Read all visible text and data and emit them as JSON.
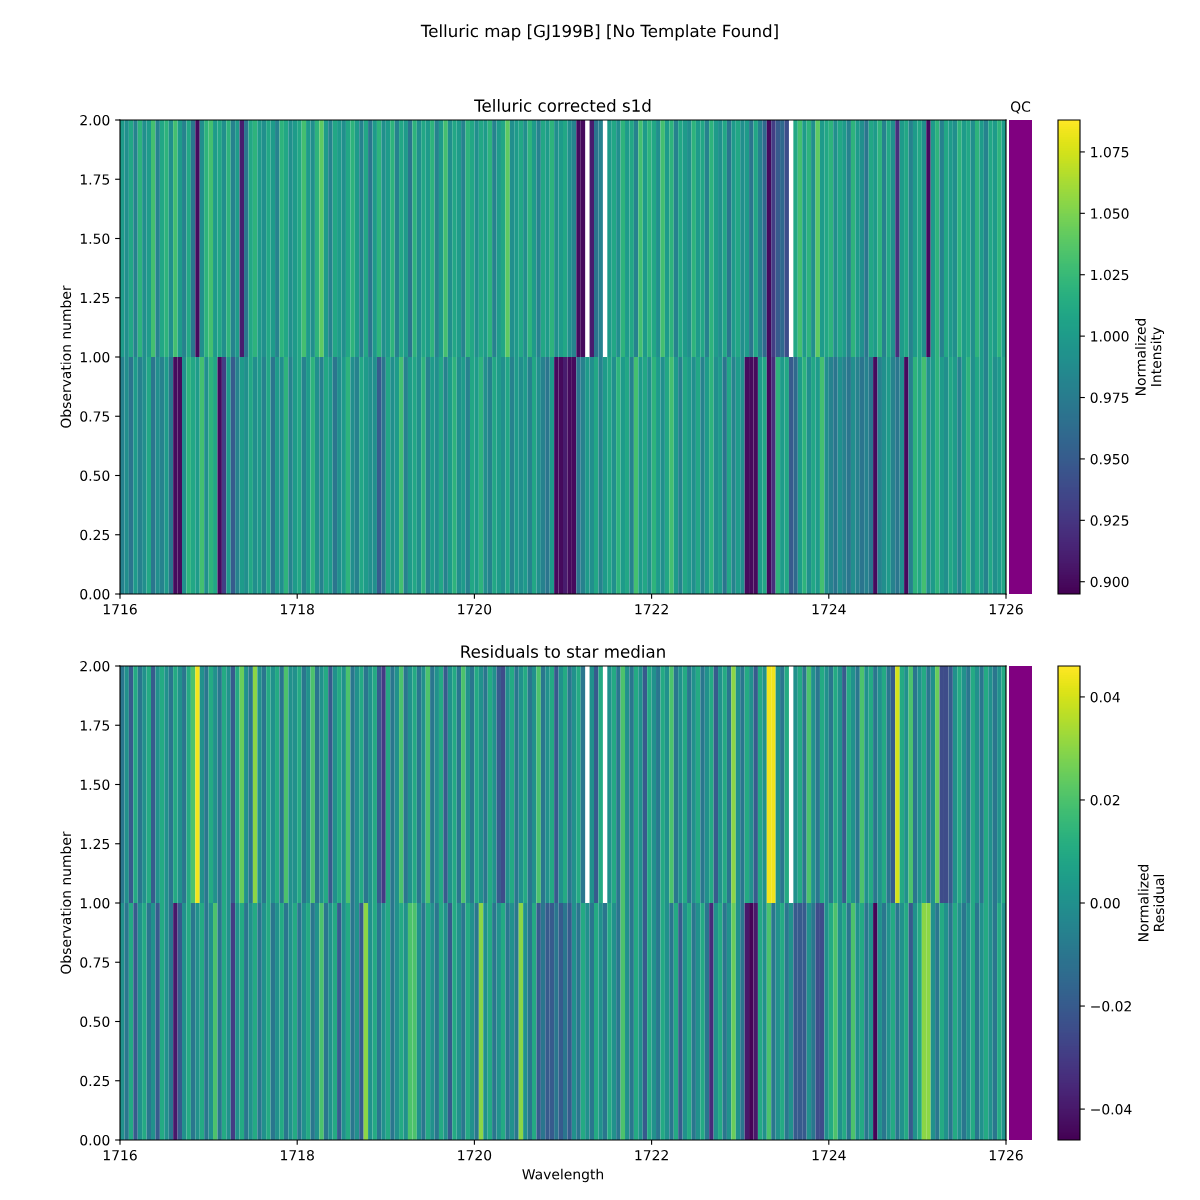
{
  "chart_data": [
    {
      "type": "heatmap",
      "title": "Telluric corrected s1d",
      "annotations": [
        "Telluric map [GJ199B] [No Template Found]"
      ],
      "ylabel": "Observation number",
      "clabel": "Normalized\nIntensity",
      "x": [
        1716.025,
        1716.075,
        1716.125,
        1716.175,
        1716.225,
        1716.275,
        1716.325,
        1716.375,
        1716.425,
        1716.475,
        1716.525,
        1716.575,
        1716.625,
        1716.675,
        1716.725,
        1716.775,
        1716.825,
        1716.875,
        1716.925,
        1716.975,
        1717.025,
        1717.075,
        1717.125,
        1717.175,
        1717.225,
        1717.275,
        1717.325,
        1717.375,
        1717.425,
        1717.475,
        1717.525,
        1717.575,
        1717.625,
        1717.675,
        1717.725,
        1717.775,
        1717.825,
        1717.875,
        1717.925,
        1717.975,
        1718.025,
        1718.075,
        1718.125,
        1718.175,
        1718.225,
        1718.275,
        1718.325,
        1718.375,
        1718.425,
        1718.475,
        1718.525,
        1718.575,
        1718.625,
        1718.675,
        1718.725,
        1718.775,
        1718.825,
        1718.875,
        1718.925,
        1718.975,
        1719.025,
        1719.075,
        1719.125,
        1719.175,
        1719.225,
        1719.275,
        1719.325,
        1719.375,
        1719.425,
        1719.475,
        1719.525,
        1719.575,
        1719.625,
        1719.675,
        1719.725,
        1719.775,
        1719.825,
        1719.875,
        1719.925,
        1719.975,
        1720.025,
        1720.075,
        1720.125,
        1720.175,
        1720.225,
        1720.275,
        1720.325,
        1720.375,
        1720.425,
        1720.475,
        1720.525,
        1720.575,
        1720.625,
        1720.675,
        1720.725,
        1720.775,
        1720.825,
        1720.875,
        1720.925,
        1720.975,
        1721.025,
        1721.075,
        1721.125,
        1721.175,
        1721.225,
        1721.275,
        1721.325,
        1721.375,
        1721.425,
        1721.475,
        1721.525,
        1721.575,
        1721.625,
        1721.675,
        1721.725,
        1721.775,
        1721.825,
        1721.875,
        1721.925,
        1721.975,
        1722.025,
        1722.075,
        1722.125,
        1722.175,
        1722.225,
        1722.275,
        1722.325,
        1722.375,
        1722.425,
        1722.475,
        1722.525,
        1722.575,
        1722.625,
        1722.675,
        1722.725,
        1722.775,
        1722.825,
        1722.875,
        1722.925,
        1722.975,
        1723.025,
        1723.075,
        1723.125,
        1723.175,
        1723.225,
        1723.275,
        1723.325,
        1723.375,
        1723.425,
        1723.475,
        1723.525,
        1723.575,
        1723.625,
        1723.675,
        1723.725,
        1723.775,
        1723.825,
        1723.875,
        1723.925,
        1723.975,
        1724.025,
        1724.075,
        1724.125,
        1724.175,
        1724.225,
        1724.275,
        1724.325,
        1724.375,
        1724.425,
        1724.475,
        1724.525,
        1724.575,
        1724.625,
        1724.675,
        1724.725,
        1724.775,
        1724.825,
        1724.875,
        1724.925,
        1724.975,
        1725.025,
        1725.075,
        1725.125,
        1725.175,
        1725.225,
        1725.275,
        1725.325,
        1725.375,
        1725.425,
        1725.475,
        1725.525,
        1725.575,
        1725.625,
        1725.675,
        1725.725,
        1725.775,
        1725.825,
        1725.875,
        1725.925,
        1725.975
      ],
      "cells": [
        [
          1.0,
          0.99,
          1.01,
          0.98,
          1.02,
          0.99,
          1.0,
          1.03,
          0.98,
          1.01,
          1.02,
          0.99,
          1.03,
          1.0,
          0.98,
          1.01,
          0.97,
          0.9,
          0.99,
          1.02,
          1.03,
          1.0,
          1.01,
          0.99,
          1.02,
          0.98,
          1.0,
          0.91,
          0.97,
          1.01,
          1.02,
          1.0,
          0.99,
          1.01,
          1.0,
          0.98,
          1.02,
          1.01,
          0.99,
          1.0,
          1.01,
          1.03,
          1.0,
          0.99,
          1.02,
          1.04,
          1.0,
          0.98,
          1.01,
          1.0,
          0.99,
          1.01,
          1.02,
          1.0,
          0.98,
          1.01,
          0.97,
          1.0,
          1.02,
          0.99,
          1.0,
          1.02,
          0.98,
          1.01,
          1.0,
          0.97,
          1.02,
          0.99,
          1.01,
          1.0,
          1.02,
          0.98,
          1.0,
          1.03,
          0.99,
          1.01,
          1.0,
          0.98,
          1.02,
          1.01,
          0.99,
          1.01,
          1.0,
          1.02,
          0.98,
          1.0,
          1.01,
          1.04,
          0.99,
          1.0,
          1.01,
          0.99,
          1.02,
          1.0,
          0.98,
          1.01,
          1.0,
          1.02,
          0.99,
          1.0,
          1.01,
          0.99,
          0.98,
          0.9,
          0.9,
          null,
          0.91,
          0.97,
          0.98,
          null,
          1.0,
          1.01,
          0.99,
          1.02,
          1.0,
          1.01,
          0.98,
          1.03,
          1.0,
          1.02,
          1.01,
          0.99,
          1.03,
          1.0,
          1.02,
          0.98,
          1.01,
          1.0,
          0.99,
          1.02,
          1.0,
          1.01,
          0.98,
          1.02,
          1.0,
          0.99,
          1.01,
          0.97,
          1.0,
          1.01,
          0.99,
          1.0,
          0.97,
          1.01,
          0.98,
          0.96,
          0.9,
          0.93,
          0.95,
          0.96,
          0.94,
          null,
          1.01,
          1.03,
          1.0,
          1.02,
          0.99,
          1.04,
          1.0,
          1.01,
          1.02,
          0.99,
          1.01,
          1.0,
          0.98,
          1.02,
          1.0,
          0.99,
          0.97,
          1.01,
          1.0,
          1.02,
          0.98,
          1.01,
          0.99,
          0.92,
          1.0,
          1.01,
          0.98,
          1.0,
          1.01,
          0.99,
          0.9,
          1.0,
          1.02,
          0.98,
          1.01,
          1.0,
          0.99,
          1.02,
          1.0,
          1.01,
          0.99,
          1.02,
          1.0,
          0.98,
          1.01,
          1.0,
          1.02,
          1.0
        ],
        [
          0.98,
          0.99,
          0.97,
          1.0,
          0.98,
          0.99,
          1.01,
          0.97,
          0.99,
          0.98,
          1.0,
          0.97,
          0.9,
          0.9,
          0.99,
          1.02,
          1.01,
          1.0,
          1.03,
          0.99,
          1.02,
          1.01,
          0.9,
          0.93,
          1.0,
          0.95,
          0.98,
          1.0,
          0.99,
          1.01,
          0.99,
          1.0,
          0.98,
          1.01,
          0.97,
          1.0,
          0.99,
          1.02,
          0.98,
          1.0,
          1.01,
          0.98,
          1.0,
          1.02,
          0.99,
          0.98,
          1.01,
          1.0,
          0.97,
          0.99,
          1.0,
          1.02,
          0.99,
          0.98,
          1.01,
          1.0,
          0.99,
          0.99,
          0.95,
          0.97,
          1.01,
          0.99,
          1.0,
          1.03,
          0.98,
          1.0,
          1.01,
          0.99,
          1.02,
          0.98,
          1.0,
          0.99,
          1.01,
          0.98,
          1.0,
          1.02,
          0.99,
          1.0,
          0.98,
          1.01,
          1.0,
          1.02,
          0.99,
          0.98,
          1.01,
          1.0,
          0.99,
          1.01,
          0.98,
          1.0,
          0.99,
          1.0,
          0.98,
          1.01,
          0.99,
          0.98,
          0.97,
          1.0,
          0.9,
          0.9,
          0.91,
          0.9,
          0.9,
          0.97,
          0.98,
          1.0,
          0.99,
          1.01,
          0.98,
          1.0,
          1.01,
          0.99,
          1.02,
          1.0,
          1.01,
          0.98,
          1.03,
          1.0,
          1.01,
          0.99,
          1.02,
          1.0,
          0.99,
          1.01,
          1.03,
          1.0,
          0.98,
          1.01,
          1.0,
          0.99,
          1.01,
          0.98,
          1.0,
          1.02,
          0.99,
          1.0,
          0.97,
          1.01,
          0.98,
          1.0,
          0.99,
          0.9,
          0.9,
          0.9,
          1.0,
          1.01,
          0.9,
          0.92,
          1.02,
          1.0,
          1.01,
          0.95,
          0.96,
          1.0,
          1.02,
          0.99,
          1.01,
          1.0,
          1.03,
          0.99,
          0.98,
          0.97,
          0.99,
          0.98,
          0.97,
          0.99,
          0.98,
          0.97,
          0.98,
          0.97,
          0.9,
          0.98,
          0.99,
          1.0,
          0.98,
          0.97,
          0.99,
          0.9,
          0.98,
          1.02,
          1.01,
          1.03,
          0.99,
          1.0,
          1.02,
          1.0,
          0.99,
          1.01,
          1.0,
          0.98,
          1.0,
          1.02,
          0.99,
          1.01,
          1.0,
          0.98,
          1.01,
          0.99,
          1.0,
          1.01
        ]
      ],
      "clim": [
        0.895,
        1.088
      ],
      "cticks": [
        {
          "value": 0.9,
          "label": "0.900"
        },
        {
          "value": 0.925,
          "label": "0.925"
        },
        {
          "value": 0.95,
          "label": "0.950"
        },
        {
          "value": 0.975,
          "label": "0.975"
        },
        {
          "value": 1.0,
          "label": "1.000"
        },
        {
          "value": 1.025,
          "label": "1.025"
        },
        {
          "value": 1.05,
          "label": "1.050"
        },
        {
          "value": 1.075,
          "label": "1.075"
        }
      ],
      "xlim": [
        1716,
        1726
      ],
      "xticks": [
        1716,
        1718,
        1720,
        1722,
        1724,
        1726
      ],
      "ylim": [
        0,
        2
      ],
      "yticks": [
        {
          "value": 0,
          "label": "0.00"
        },
        {
          "value": 0.25,
          "label": "0.25"
        },
        {
          "value": 0.5,
          "label": "0.50"
        },
        {
          "value": 0.75,
          "label": "0.75"
        },
        {
          "value": 1,
          "label": "1.00"
        },
        {
          "value": 1.25,
          "label": "1.25"
        },
        {
          "value": 1.5,
          "label": "1.50"
        },
        {
          "value": 1.75,
          "label": "1.75"
        },
        {
          "value": 2,
          "label": "2.00"
        }
      ]
    },
    {
      "type": "other",
      "title": "QC",
      "color": "#800080"
    },
    {
      "type": "heatmap",
      "title": "Residuals to star median",
      "xlabel": "Wavelength",
      "ylabel": "Observation number",
      "clabel": "Normalized\nResidual",
      "x": [
        1716.025,
        1716.075,
        1716.125,
        1716.175,
        1716.225,
        1716.275,
        1716.325,
        1716.375,
        1716.425,
        1716.475,
        1716.525,
        1716.575,
        1716.625,
        1716.675,
        1716.725,
        1716.775,
        1716.825,
        1716.875,
        1716.925,
        1716.975,
        1717.025,
        1717.075,
        1717.125,
        1717.175,
        1717.225,
        1717.275,
        1717.325,
        1717.375,
        1717.425,
        1717.475,
        1717.525,
        1717.575,
        1717.625,
        1717.675,
        1717.725,
        1717.775,
        1717.825,
        1717.875,
        1717.925,
        1717.975,
        1718.025,
        1718.075,
        1718.125,
        1718.175,
        1718.225,
        1718.275,
        1718.325,
        1718.375,
        1718.425,
        1718.475,
        1718.525,
        1718.575,
        1718.625,
        1718.675,
        1718.725,
        1718.775,
        1718.825,
        1718.875,
        1718.925,
        1718.975,
        1719.025,
        1719.075,
        1719.125,
        1719.175,
        1719.225,
        1719.275,
        1719.325,
        1719.375,
        1719.425,
        1719.475,
        1719.525,
        1719.575,
        1719.625,
        1719.675,
        1719.725,
        1719.775,
        1719.825,
        1719.875,
        1719.925,
        1719.975,
        1720.025,
        1720.075,
        1720.125,
        1720.175,
        1720.225,
        1720.275,
        1720.325,
        1720.375,
        1720.425,
        1720.475,
        1720.525,
        1720.575,
        1720.625,
        1720.675,
        1720.725,
        1720.775,
        1720.825,
        1720.875,
        1720.925,
        1720.975,
        1721.025,
        1721.075,
        1721.125,
        1721.175,
        1721.225,
        1721.275,
        1721.325,
        1721.375,
        1721.425,
        1721.475,
        1721.525,
        1721.575,
        1721.625,
        1721.675,
        1721.725,
        1721.775,
        1721.825,
        1721.875,
        1721.925,
        1721.975,
        1722.025,
        1722.075,
        1722.125,
        1722.175,
        1722.225,
        1722.275,
        1722.325,
        1722.375,
        1722.425,
        1722.475,
        1722.525,
        1722.575,
        1722.625,
        1722.675,
        1722.725,
        1722.775,
        1722.825,
        1722.875,
        1722.925,
        1722.975,
        1723.025,
        1723.075,
        1723.125,
        1723.175,
        1723.225,
        1723.275,
        1723.325,
        1723.375,
        1723.425,
        1723.475,
        1723.525,
        1723.575,
        1723.625,
        1723.675,
        1723.725,
        1723.775,
        1723.825,
        1723.875,
        1723.925,
        1723.975,
        1724.025,
        1724.075,
        1724.125,
        1724.175,
        1724.225,
        1724.275,
        1724.325,
        1724.375,
        1724.425,
        1724.475,
        1724.525,
        1724.575,
        1724.625,
        1724.675,
        1724.725,
        1724.775,
        1724.825,
        1724.875,
        1724.925,
        1724.975,
        1725.025,
        1725.075,
        1725.125,
        1725.175,
        1725.225,
        1725.275,
        1725.325,
        1725.375,
        1725.425,
        1725.475,
        1725.525,
        1725.575,
        1725.625,
        1725.675,
        1725.725,
        1725.775,
        1725.825,
        1725.875,
        1725.925,
        1725.975
      ],
      "cells": [
        [
          -0.01,
          0.0,
          -0.02,
          0.01,
          -0.01,
          0.0,
          0.01,
          -0.02,
          0.0,
          0.01,
          0.0,
          -0.01,
          0.01,
          0.0,
          -0.01,
          0.01,
          0.02,
          0.044,
          0.0,
          -0.01,
          0.01,
          0.0,
          -0.01,
          0.01,
          0.0,
          -0.02,
          0.01,
          0.025,
          0.0,
          -0.01,
          0.03,
          0.0,
          -0.01,
          0.01,
          0.0,
          0.01,
          -0.01,
          0.02,
          0.0,
          0.0,
          0.01,
          -0.01,
          0.0,
          0.02,
          -0.01,
          0.0,
          0.01,
          -0.02,
          0.0,
          0.01,
          0.0,
          0.02,
          -0.01,
          0.0,
          0.01,
          -0.01,
          0.0,
          0.01,
          -0.02,
          -0.03,
          0.01,
          -0.01,
          0.0,
          0.02,
          -0.01,
          0.0,
          0.01,
          -0.01,
          0.0,
          0.02,
          -0.01,
          0.0,
          0.01,
          -0.02,
          0.0,
          0.01,
          -0.01,
          0.02,
          0.0,
          -0.01,
          0.01,
          0.0,
          -0.01,
          0.01,
          0.0,
          -0.02,
          -0.025,
          0.0,
          0.01,
          -0.01,
          0.0,
          0.01,
          -0.01,
          0.0,
          0.02,
          -0.01,
          0.0,
          0.01,
          -0.02,
          0.0,
          0.01,
          -0.01,
          0.0,
          0.01,
          -0.01,
          null,
          0.0,
          -0.02,
          0.01,
          null,
          0.0,
          0.01,
          -0.01,
          0.02,
          0.0,
          -0.01,
          0.01,
          0.0,
          -0.02,
          0.01,
          0.0,
          -0.01,
          0.01,
          0.0,
          0.02,
          -0.01,
          0.0,
          0.01,
          -0.01,
          0.0,
          0.01,
          -0.01,
          0.0,
          0.01,
          -0.02,
          0.0,
          0.01,
          -0.01,
          0.03,
          0.0,
          -0.01,
          0.01,
          0.0,
          -0.02,
          0.01,
          0.0,
          0.044,
          0.044,
          0.0,
          -0.01,
          0.01,
          null,
          0.0,
          0.01,
          -0.01,
          0.02,
          0.0,
          -0.01,
          0.01,
          0.0,
          -0.01,
          0.01,
          0.0,
          -0.02,
          0.01,
          0.0,
          -0.01,
          0.02,
          0.0,
          0.01,
          -0.01,
          0.0,
          0.01,
          -0.01,
          -0.02,
          0.04,
          0.01,
          0.0,
          0.02,
          -0.01,
          0.0,
          0.01,
          -0.01,
          0.0,
          0.025,
          -0.025,
          -0.025,
          -0.02,
          0.0,
          0.01,
          0.0,
          -0.01,
          0.01,
          0.0,
          -0.01,
          0.01,
          0.0,
          -0.01,
          0.0,
          0.01
        ],
        [
          0.0,
          -0.01,
          0.01,
          -0.02,
          0.0,
          0.01,
          -0.01,
          0.0,
          -0.02,
          0.01,
          0.0,
          -0.01,
          -0.04,
          -0.02,
          0.0,
          0.01,
          -0.01,
          0.0,
          0.01,
          -0.01,
          0.0,
          0.02,
          -0.01,
          0.01,
          0.0,
          -0.03,
          0.0,
          0.01,
          -0.01,
          0.0,
          0.01,
          -0.01,
          0.0,
          0.01,
          -0.01,
          0.0,
          0.01,
          -0.01,
          0.0,
          0.01,
          -0.01,
          0.0,
          0.01,
          -0.01,
          0.0,
          0.02,
          -0.01,
          0.0,
          0.01,
          -0.02,
          0.0,
          0.01,
          -0.01,
          0.0,
          -0.02,
          0.03,
          0.0,
          0.01,
          -0.01,
          0.0,
          0.01,
          -0.01,
          0.0,
          0.01,
          0.0,
          0.02,
          0.02,
          0.0,
          -0.01,
          0.01,
          0.0,
          -0.01,
          0.01,
          0.0,
          -0.02,
          0.01,
          0.0,
          -0.01,
          0.01,
          0.0,
          -0.01,
          0.03,
          0.0,
          0.01,
          -0.01,
          0.0,
          0.01,
          -0.01,
          0.0,
          -0.01,
          0.03,
          0.0,
          -0.01,
          0.01,
          -0.02,
          -0.01,
          -0.02,
          -0.02,
          -0.01,
          -0.02,
          -0.01,
          -0.02,
          0.0,
          -0.01,
          0.01,
          0.0,
          -0.01,
          0.01,
          0.0,
          -0.01,
          0.01,
          0.0,
          -0.01,
          0.02,
          0.0,
          -0.01,
          0.01,
          0.0,
          -0.02,
          0.01,
          0.0,
          -0.01,
          0.01,
          0.0,
          -0.01,
          0.01,
          -0.02,
          0.0,
          0.01,
          -0.01,
          0.0,
          0.01,
          -0.01,
          -0.035,
          0.0,
          0.01,
          -0.01,
          0.0,
          0.025,
          0.0,
          -0.01,
          -0.04,
          -0.045,
          -0.04,
          0.01,
          0.0,
          0.02,
          -0.01,
          0.0,
          0.01,
          -0.01,
          0.0,
          -0.02,
          -0.02,
          -0.02,
          0.0,
          -0.01,
          -0.025,
          -0.025,
          0.0,
          0.01,
          0.02,
          0.0,
          0.01,
          -0.01,
          0.02,
          0.0,
          0.01,
          -0.01,
          0.0,
          -0.045,
          0.0,
          -0.01,
          0.0,
          0.01,
          -0.01,
          0.0,
          0.01,
          -0.02,
          0.0,
          0.01,
          0.03,
          0.03,
          0.0,
          -0.01,
          0.01,
          0.0,
          -0.01,
          0.01,
          0.0,
          -0.01,
          0.0,
          0.01,
          -0.01,
          0.0,
          0.01,
          0.0,
          -0.01,
          0.01,
          0.0
        ]
      ],
      "clim": [
        -0.046,
        0.046
      ],
      "cticks": [
        {
          "value": -0.04,
          "label": "−0.04"
        },
        {
          "value": -0.02,
          "label": "−0.02"
        },
        {
          "value": 0,
          "label": "0.00"
        },
        0.02,
        0.04
      ],
      "xlim": [
        1716,
        1726
      ],
      "xticks": [
        1716,
        1718,
        1720,
        1722,
        1724,
        1726
      ],
      "ylim": [
        0,
        2
      ],
      "yticks": [
        {
          "value": 0,
          "label": "0.00"
        },
        {
          "value": 0.25,
          "label": "0.25"
        },
        {
          "value": 0.5,
          "label": "0.50"
        },
        {
          "value": 0.75,
          "label": "0.75"
        },
        {
          "value": 1,
          "label": "1.00"
        },
        {
          "value": 1.25,
          "label": "1.25"
        },
        {
          "value": 1.5,
          "label": "1.50"
        },
        {
          "value": 1.75,
          "label": "1.75"
        },
        {
          "value": 2,
          "label": "2.00"
        }
      ]
    },
    {
      "type": "other",
      "color": "#800080"
    }
  ]
}
